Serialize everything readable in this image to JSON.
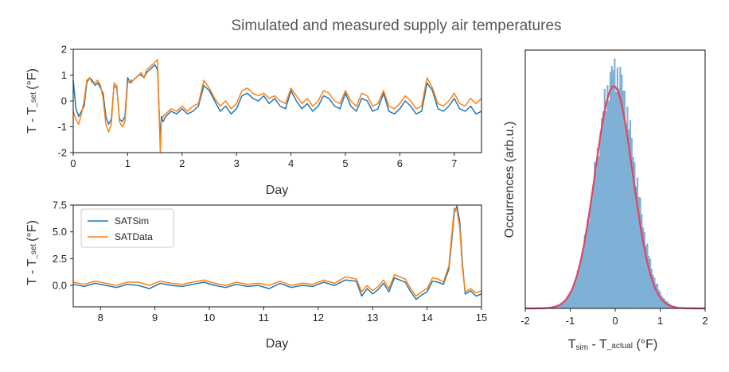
{
  "figure": {
    "title": "Simulated and measured supply air temperatures"
  },
  "colors": {
    "sim": "#1f77b4",
    "data": "#ff7f0e",
    "hist": "#7fb0d6",
    "fit": "#e0455e",
    "frame": "#262626"
  },
  "chart_data": [
    {
      "type": "line",
      "xlabel": "Day",
      "ylabel": "T - T_set (°F)",
      "ylabel_main": "T - T",
      "ylabel_sub": "_set",
      "ylabel_unit": "(°F)",
      "xlim": [
        0,
        7.5
      ],
      "ylim": [
        -2,
        2
      ],
      "xticks": [
        0,
        1,
        2,
        3,
        4,
        5,
        6,
        7
      ],
      "xtick_labels": [
        "0",
        "1",
        "2",
        "3",
        "4",
        "5",
        "6",
        "7"
      ],
      "yticks": [
        -2,
        -1,
        0,
        1,
        2
      ],
      "ytick_labels": [
        "-2",
        "-1",
        "0",
        "1",
        "2"
      ],
      "series": [
        {
          "name": "SATSim",
          "x": [
            0,
            0.05,
            0.1,
            0.15,
            0.2,
            0.25,
            0.3,
            0.35,
            0.4,
            0.45,
            0.5,
            0.55,
            0.6,
            0.65,
            0.7,
            0.75,
            0.8,
            0.85,
            0.9,
            0.95,
            1.0,
            1.05,
            1.1,
            1.15,
            1.2,
            1.25,
            1.3,
            1.35,
            1.4,
            1.45,
            1.5,
            1.55,
            1.6,
            1.62,
            1.65,
            1.7,
            1.8,
            1.9,
            2.0,
            2.1,
            2.2,
            2.3,
            2.4,
            2.5,
            2.6,
            2.7,
            2.8,
            2.9,
            3.0,
            3.1,
            3.2,
            3.3,
            3.4,
            3.5,
            3.6,
            3.7,
            3.8,
            3.9,
            4.0,
            4.1,
            4.2,
            4.3,
            4.4,
            4.5,
            4.6,
            4.7,
            4.8,
            4.9,
            5.0,
            5.1,
            5.2,
            5.3,
            5.4,
            5.5,
            5.6,
            5.7,
            5.8,
            5.9,
            6.0,
            6.1,
            6.2,
            6.3,
            6.4,
            6.5,
            6.6,
            6.7,
            6.8,
            6.9,
            7.0,
            7.1,
            7.2,
            7.3,
            7.4,
            7.5
          ],
          "values": [
            0.8,
            -0.3,
            -0.6,
            -0.4,
            -0.2,
            0.7,
            0.9,
            0.8,
            0.6,
            0.7,
            0.5,
            0.3,
            -0.6,
            -0.9,
            -0.7,
            0.6,
            0.5,
            -0.7,
            -0.8,
            -0.6,
            0.9,
            0.7,
            0.8,
            0.9,
            1.0,
            1.0,
            0.9,
            1.1,
            1.2,
            1.3,
            1.4,
            1.2,
            -1.6,
            -0.6,
            -0.8,
            -0.6,
            -0.4,
            -0.5,
            -0.3,
            -0.5,
            -0.4,
            -0.2,
            0.6,
            0.4,
            0.0,
            -0.4,
            -0.2,
            -0.5,
            -0.3,
            0.2,
            0.3,
            0.1,
            0.0,
            0.2,
            -0.1,
            0.1,
            -0.2,
            -0.3,
            0.4,
            0.0,
            -0.3,
            -0.1,
            -0.4,
            -0.2,
            0.2,
            0.1,
            -0.2,
            -0.3,
            0.3,
            -0.2,
            -0.4,
            0.1,
            0.0,
            -0.4,
            -0.3,
            0.3,
            -0.4,
            -0.5,
            -0.3,
            0.0,
            -0.2,
            -0.5,
            -0.4,
            0.7,
            0.4,
            -0.3,
            -0.4,
            -0.2,
            0.1,
            -0.3,
            -0.4,
            -0.2,
            -0.5,
            -0.4
          ]
        },
        {
          "name": "SATData",
          "x": [
            0,
            0.05,
            0.1,
            0.15,
            0.2,
            0.25,
            0.3,
            0.35,
            0.4,
            0.45,
            0.5,
            0.55,
            0.6,
            0.65,
            0.7,
            0.75,
            0.8,
            0.85,
            0.9,
            0.95,
            1.0,
            1.05,
            1.1,
            1.15,
            1.2,
            1.25,
            1.3,
            1.35,
            1.4,
            1.45,
            1.5,
            1.55,
            1.6,
            1.62,
            1.65,
            1.7,
            1.8,
            1.9,
            2.0,
            2.1,
            2.2,
            2.3,
            2.4,
            2.5,
            2.6,
            2.7,
            2.8,
            2.9,
            3.0,
            3.1,
            3.2,
            3.3,
            3.4,
            3.5,
            3.6,
            3.7,
            3.8,
            3.9,
            4.0,
            4.1,
            4.2,
            4.3,
            4.4,
            4.5,
            4.6,
            4.7,
            4.8,
            4.9,
            5.0,
            5.1,
            5.2,
            5.3,
            5.4,
            5.5,
            5.6,
            5.7,
            5.8,
            5.9,
            6.0,
            6.1,
            6.2,
            6.3,
            6.4,
            6.5,
            6.6,
            6.7,
            6.8,
            6.9,
            7.0,
            7.1,
            7.2,
            7.3,
            7.4,
            7.5
          ],
          "values": [
            -0.4,
            -0.7,
            -0.9,
            -0.5,
            0.0,
            0.8,
            0.9,
            0.7,
            0.7,
            0.8,
            0.6,
            0.1,
            -0.9,
            -1.2,
            -0.9,
            0.7,
            0.6,
            -0.8,
            -1.0,
            -0.8,
            0.7,
            0.8,
            0.8,
            0.9,
            1.0,
            1.1,
            0.9,
            1.2,
            1.3,
            1.4,
            1.5,
            1.6,
            -2.0,
            -0.8,
            -0.6,
            -0.5,
            -0.3,
            -0.4,
            -0.2,
            -0.4,
            -0.2,
            -0.1,
            0.8,
            0.5,
            0.1,
            -0.2,
            0.0,
            -0.3,
            -0.1,
            0.4,
            0.5,
            0.3,
            0.2,
            0.3,
            0.1,
            0.2,
            0.0,
            -0.1,
            0.5,
            0.2,
            -0.1,
            0.1,
            -0.2,
            0.0,
            0.4,
            0.3,
            0.0,
            -0.1,
            0.4,
            0.0,
            -0.2,
            0.3,
            0.2,
            -0.2,
            -0.1,
            0.4,
            -0.2,
            -0.3,
            -0.1,
            0.2,
            0.0,
            -0.3,
            -0.2,
            0.9,
            0.5,
            -0.1,
            -0.2,
            0.0,
            0.3,
            -0.1,
            -0.2,
            0.1,
            -0.1,
            0.1
          ]
        }
      ]
    },
    {
      "type": "line",
      "xlabel": "Day",
      "ylabel": "T - T_set (°F)",
      "ylabel_main": "T - T",
      "ylabel_sub": "_set",
      "ylabel_unit": "(°F)",
      "xlim": [
        7.5,
        15
      ],
      "ylim": [
        -2,
        7.5
      ],
      "xticks": [
        8,
        9,
        10,
        11,
        12,
        13,
        14,
        15
      ],
      "xtick_labels": [
        "8",
        "9",
        "10",
        "11",
        "12",
        "13",
        "14",
        "15"
      ],
      "yticks": [
        0,
        2.5,
        5,
        7.5
      ],
      "ytick_labels": [
        "0.0",
        "2.5",
        "5.0",
        "7.5"
      ],
      "legend": {
        "position": "upper-left",
        "entries": [
          "SATSim",
          "SATData"
        ]
      },
      "series": [
        {
          "name": "SATSim",
          "x": [
            7.5,
            7.7,
            7.9,
            8.1,
            8.3,
            8.5,
            8.7,
            8.9,
            9.1,
            9.3,
            9.5,
            9.7,
            9.9,
            10.1,
            10.3,
            10.5,
            10.7,
            10.9,
            11.1,
            11.3,
            11.5,
            11.7,
            11.9,
            12.1,
            12.3,
            12.5,
            12.7,
            12.8,
            12.9,
            13.0,
            13.1,
            13.2,
            13.3,
            13.4,
            13.5,
            13.6,
            13.7,
            13.8,
            13.9,
            14.0,
            14.1,
            14.2,
            14.3,
            14.4,
            14.45,
            14.5,
            14.55,
            14.6,
            14.65,
            14.7,
            14.8,
            14.9,
            15.0
          ],
          "values": [
            0.1,
            -0.1,
            0.2,
            0.0,
            -0.2,
            0.1,
            0.0,
            -0.3,
            0.2,
            0.0,
            -0.1,
            0.1,
            0.3,
            0.0,
            -0.2,
            0.1,
            -0.1,
            0.0,
            -0.3,
            0.2,
            -0.2,
            0.0,
            -0.1,
            0.3,
            0.0,
            0.5,
            0.4,
            -1.0,
            -0.3,
            -0.8,
            -0.4,
            0.2,
            -0.6,
            0.7,
            0.5,
            0.3,
            -0.6,
            -1.3,
            -0.9,
            -0.6,
            0.4,
            0.3,
            0.1,
            1.5,
            4.0,
            6.8,
            7.4,
            6.0,
            2.0,
            -0.8,
            -0.5,
            -1.0,
            -0.8
          ]
        },
        {
          "name": "SATData",
          "x": [
            7.5,
            7.7,
            7.9,
            8.1,
            8.3,
            8.5,
            8.7,
            8.9,
            9.1,
            9.3,
            9.5,
            9.7,
            9.9,
            10.1,
            10.3,
            10.5,
            10.7,
            10.9,
            11.1,
            11.3,
            11.5,
            11.7,
            11.9,
            12.1,
            12.3,
            12.5,
            12.7,
            12.8,
            12.9,
            13.0,
            13.1,
            13.2,
            13.3,
            13.4,
            13.5,
            13.6,
            13.7,
            13.8,
            13.9,
            14.0,
            14.1,
            14.2,
            14.3,
            14.4,
            14.45,
            14.5,
            14.55,
            14.6,
            14.65,
            14.7,
            14.8,
            14.9,
            15.0
          ],
          "values": [
            0.3,
            0.1,
            0.4,
            0.2,
            0.0,
            0.3,
            0.3,
            0.0,
            0.4,
            0.2,
            0.1,
            0.3,
            0.5,
            0.2,
            0.0,
            0.3,
            0.1,
            0.2,
            0.0,
            0.4,
            0.0,
            0.2,
            0.1,
            0.5,
            0.2,
            0.8,
            0.6,
            -0.6,
            0.0,
            -0.5,
            -0.1,
            0.5,
            -0.3,
            1.0,
            0.8,
            0.6,
            -0.3,
            -1.0,
            -0.6,
            -0.3,
            0.7,
            0.6,
            0.3,
            1.8,
            4.5,
            7.2,
            7.0,
            5.4,
            1.6,
            -0.6,
            -0.3,
            -0.7,
            -0.5
          ]
        }
      ]
    },
    {
      "type": "bar",
      "subtype": "histogram",
      "xlabel": "Tsim - T_actual (°F)",
      "xlabel_a": "T",
      "xlabel_a_sub": "sim",
      "xlabel_b": " - T",
      "xlabel_b_sub": "_actual",
      "xlabel_unit": " (°F)",
      "ylabel": "Occurrences (arb.u.)",
      "xlim": [
        -2,
        2
      ],
      "xticks": [
        -2,
        -1,
        0,
        1,
        2
      ],
      "xtick_labels": [
        "-2",
        "-1",
        "0",
        "1",
        "2"
      ],
      "y_ticks_shown": false,
      "bin_range": [
        -1.9,
        1.9
      ],
      "bin_count": 120,
      "density_peak": 0.92,
      "mean": 0.0,
      "sigma": 0.43,
      "fit": {
        "type": "gaussian",
        "mean": -0.03,
        "sigma": 0.42,
        "peak": 0.86
      }
    }
  ]
}
